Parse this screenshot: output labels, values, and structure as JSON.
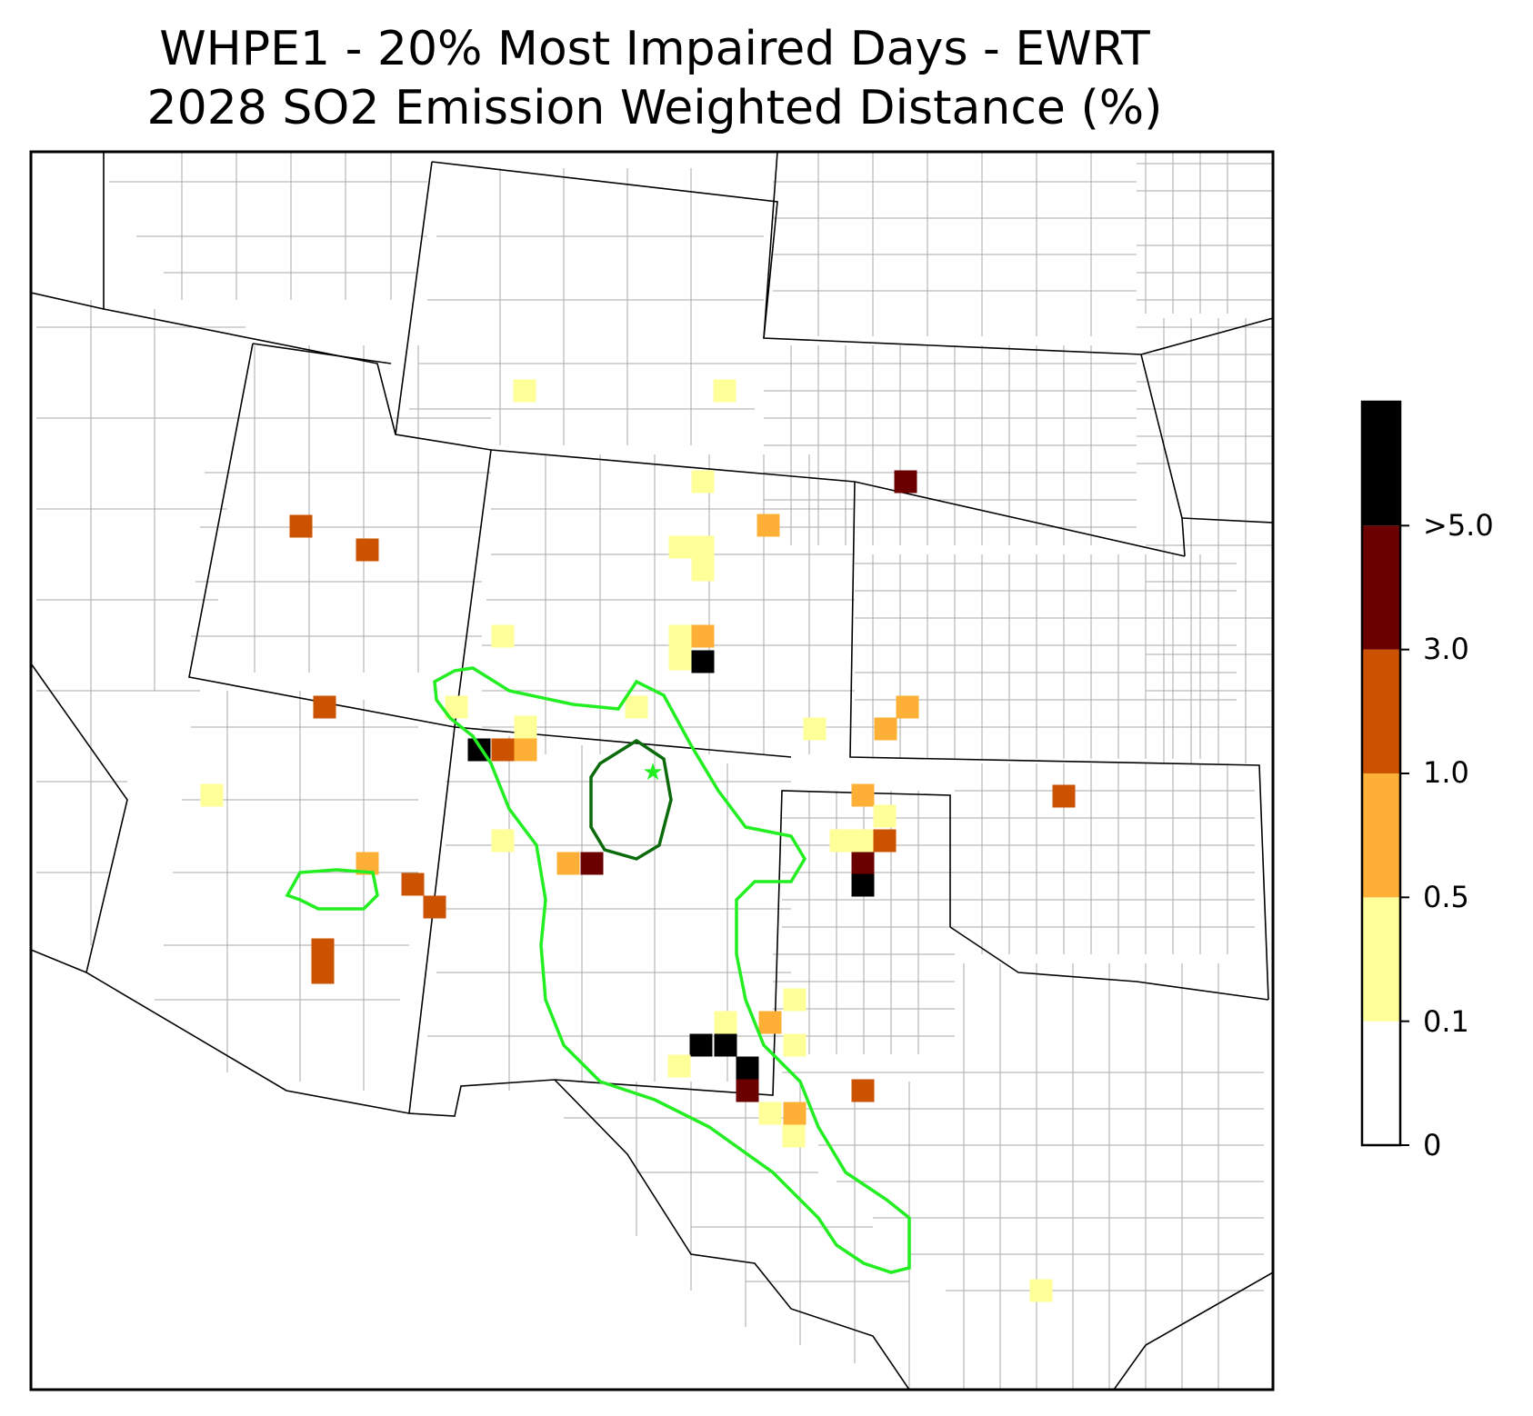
{
  "title": {
    "line1": "WHPE1 - 20% Most Impaired Days - EWRT",
    "line2": "2028 SO2 Emission Weighted Distance (%)"
  },
  "colorbar": {
    "bins": [
      {
        "label": "0",
        "color": "#ffffff"
      },
      {
        "label": "0.1",
        "color": "#ffff99"
      },
      {
        "label": "0.5",
        "color": "#fdb035"
      },
      {
        "label": "1.0",
        "color": "#cc5200"
      },
      {
        "label": "3.0",
        "color": "#6b0000"
      },
      {
        "label": ">5.0",
        "color": "#000000"
      }
    ]
  },
  "map": {
    "region": "Southwestern United States",
    "receptor_marker": "star-icon",
    "receptor_color": "#22ee22",
    "contour_colors": {
      "outer": "#22ee22",
      "inner": "#0b6b0b"
    }
  }
}
